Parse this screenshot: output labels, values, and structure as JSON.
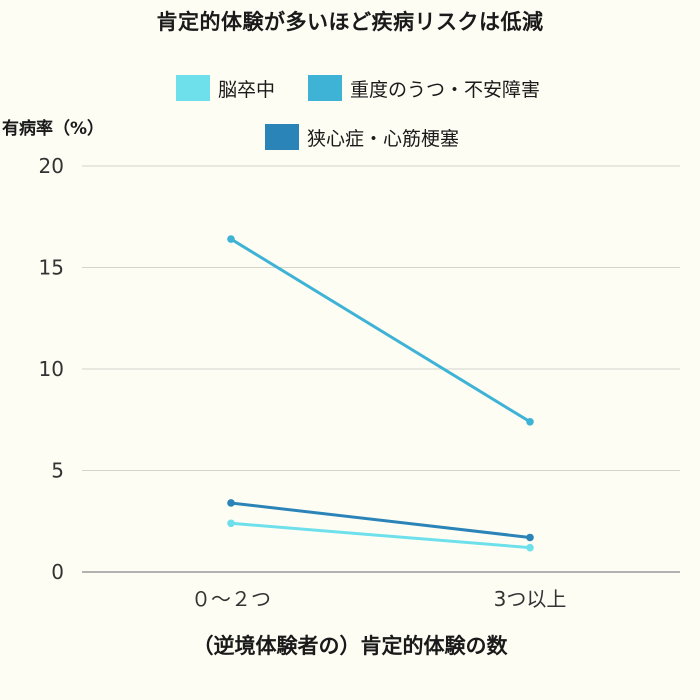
{
  "chart_data": {
    "type": "line",
    "title": "肯定的体験が多いほど疾病リスクは低減",
    "xlabel": "（逆境体験者の）肯定的体験の数",
    "ylabel": "有病率（%）",
    "categories": [
      "０～２つ",
      "3つ以上"
    ],
    "ylim": [
      0,
      20
    ],
    "yticks": [
      0,
      5,
      10,
      15,
      20
    ],
    "grid": true,
    "legend_position": "top",
    "series": [
      {
        "name": "脳卒中",
        "color": "#6ee0ec",
        "values": [
          2.4,
          1.2
        ]
      },
      {
        "name": "重度のうつ・不安障害",
        "color": "#3fb3d6",
        "values": [
          16.4,
          7.4
        ]
      },
      {
        "name": "狭心症・心筋梗塞",
        "color": "#2b84b8",
        "values": [
          3.4,
          1.7
        ]
      }
    ]
  }
}
